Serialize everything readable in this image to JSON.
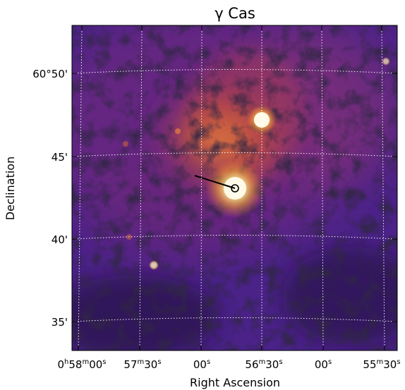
{
  "figure": {
    "title": "γ Cas",
    "xlabel": "Right Ascension",
    "ylabel": "Declination",
    "colormap": "inferno",
    "grid": true,
    "grid_color": "#ffffff",
    "frame_color": "#000000"
  },
  "ra_ticks": [
    {
      "h": "0",
      "hu": "h",
      "m": "58",
      "mu": "m",
      "s": "00",
      "su": "s"
    },
    {
      "h": "",
      "hu": "",
      "m": "57",
      "mu": "m",
      "s": "30",
      "su": "s"
    },
    {
      "h": "",
      "hu": "",
      "m": "",
      "mu": "",
      "s": "00",
      "su": "s"
    },
    {
      "h": "",
      "hu": "",
      "m": "56",
      "mu": "m",
      "s": "30",
      "su": "s"
    },
    {
      "h": "",
      "hu": "",
      "m": "",
      "mu": "",
      "s": "00",
      "su": "s"
    },
    {
      "h": "",
      "hu": "",
      "m": "55",
      "mu": "m",
      "s": "30",
      "su": "s"
    }
  ],
  "dec_ticks": [
    {
      "text": "60°50'"
    },
    {
      "text": "45'"
    },
    {
      "text": "40'"
    },
    {
      "text": "35'"
    }
  ]
}
